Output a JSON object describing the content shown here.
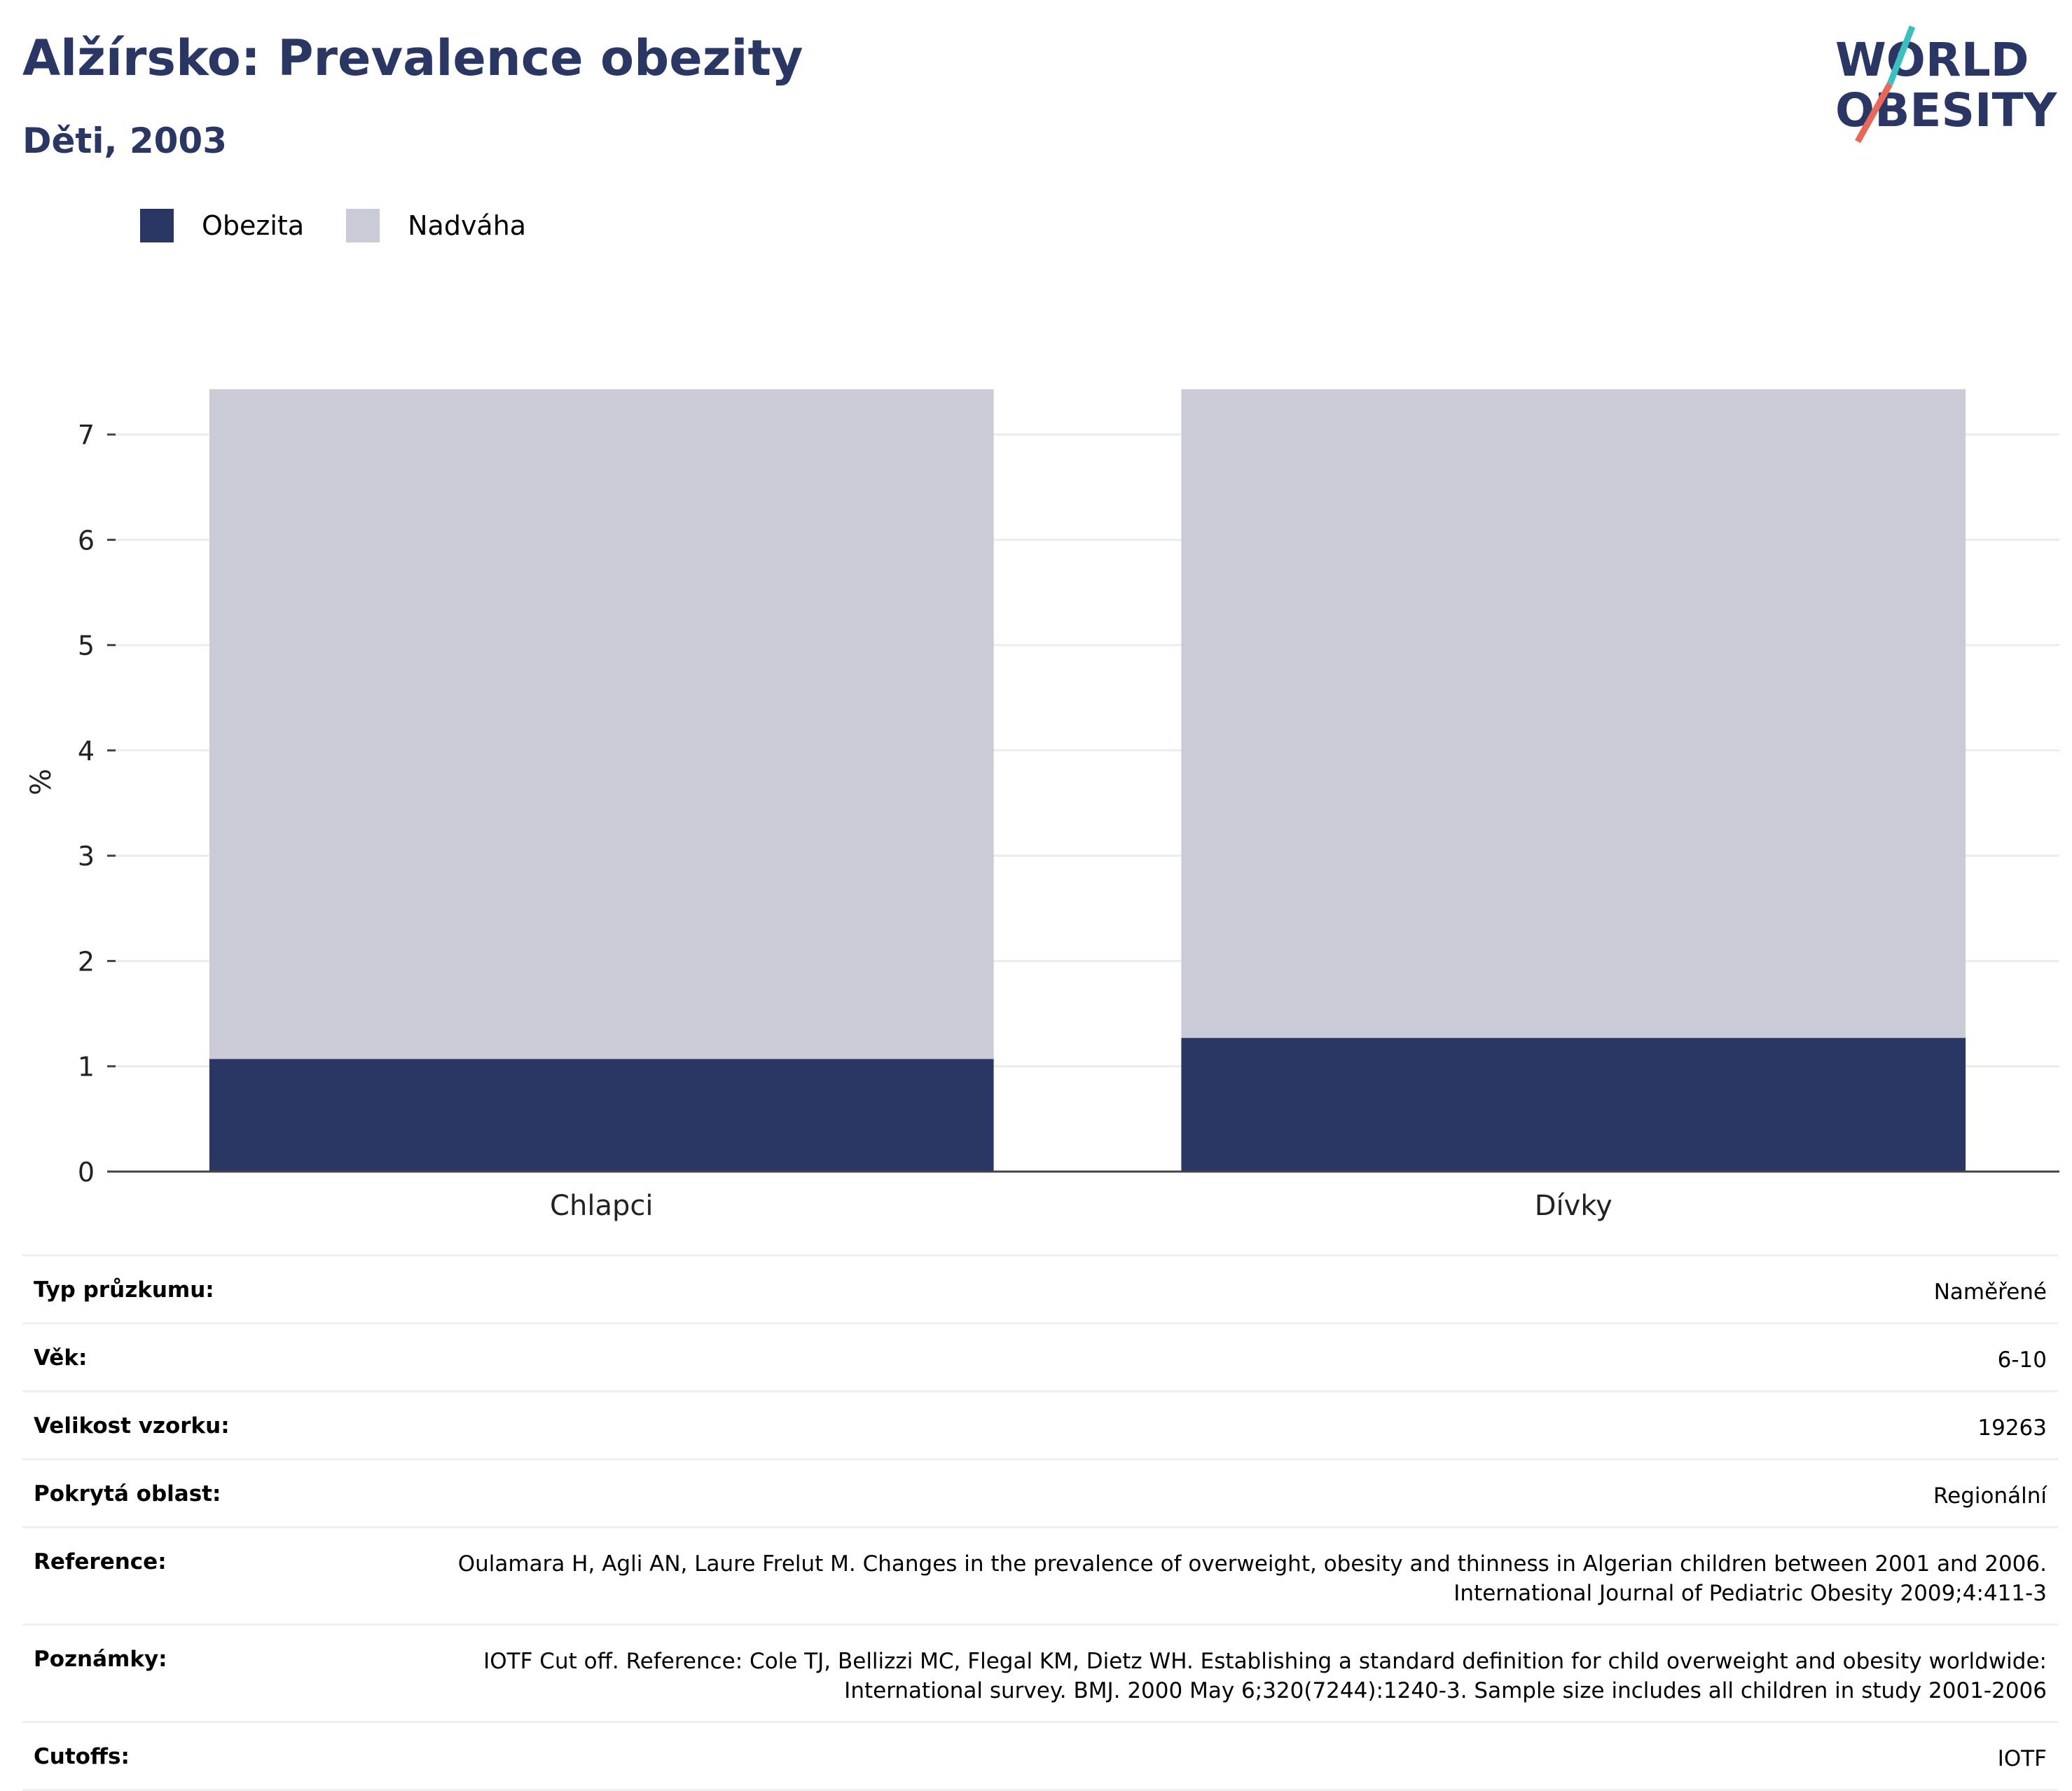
{
  "header": {
    "title": "Alžírsko: Prevalence obezity",
    "subtitle": "Děti, 2003"
  },
  "logo": {
    "line1": "WORLD",
    "line2": "OBESITY",
    "accent_teal": "#3bbfc1",
    "accent_red": "#e8685a",
    "text_color": "#2a3664"
  },
  "legend": [
    {
      "label": "Obezita",
      "color": "#2a3664"
    },
    {
      "label": "Nadváha",
      "color": "#c9ccd7"
    }
  ],
  "chart_data": {
    "type": "bar",
    "stacked": true,
    "categories": [
      "Chlapci",
      "Dívky"
    ],
    "series": [
      {
        "name": "Obezita",
        "values": [
          1.07,
          1.27
        ],
        "color": "#2a3664"
      },
      {
        "name": "Nadváha",
        "values": [
          6.36,
          6.16
        ],
        "color": "#c9ccd7"
      }
    ],
    "ylabel": "%",
    "ylim": [
      0,
      7.4
    ],
    "yticks": [
      0,
      1,
      2,
      3,
      4,
      5,
      6,
      7
    ],
    "grid": true,
    "legend_position": "top-left"
  },
  "meta": [
    {
      "label": "Typ průzkumu:",
      "value": "Naměřené"
    },
    {
      "label": "Věk:",
      "value": "6-10"
    },
    {
      "label": "Velikost vzorku:",
      "value": "19263"
    },
    {
      "label": "Pokrytá oblast:",
      "value": "Regionální"
    },
    {
      "label": "Reference:",
      "value": "Oulamara H, Agli AN, Laure Frelut M. Changes in the prevalence of overweight, obesity and thinness in Algerian children between 2001 and 2006. International Journal of Pediatric Obesity 2009;4:411-3"
    },
    {
      "label": "Poznámky:",
      "value": "IOTF Cut off. Reference: Cole TJ, Bellizzi MC, Flegal KM, Dietz WH. Establishing a standard definition for child overweight and obesity worldwide: International survey. BMJ. 2000 May 6;320(7244):1240-3. Sample size includes all children in study 2001-2006"
    },
    {
      "label": "Cutoffs:",
      "value": "IOTF"
    }
  ]
}
